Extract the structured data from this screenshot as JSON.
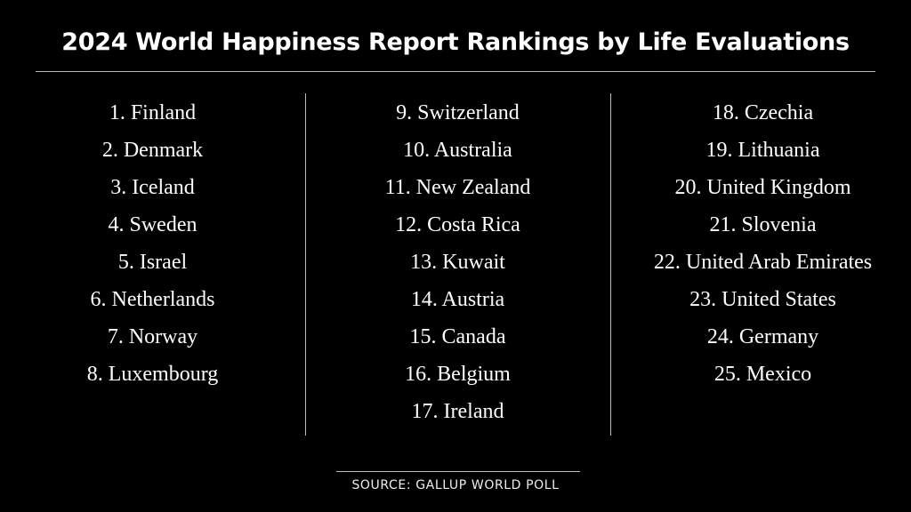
{
  "title": "2024 World Happiness Report Rankings by Life Evaluations",
  "columns": [
    [
      "1. Finland",
      "2. Denmark",
      "3. Iceland",
      "4. Sweden",
      "5. Israel",
      "6. Netherlands",
      "7. Norway",
      "8. Luxembourg"
    ],
    [
      "9. Switzerland",
      "10. Australia",
      "11. New Zealand",
      "12. Costa Rica",
      "13. Kuwait",
      "14. Austria",
      "15. Canada",
      "16. Belgium",
      "17. Ireland"
    ],
    [
      "18. Czechia",
      "19. Lithuania",
      "20. United Kingdom",
      "21. Slovenia",
      "22. United Arab Emirates",
      "23. United States",
      "24. Germany",
      "25. Mexico"
    ]
  ],
  "source": "SOURCE: GALLUP WORLD POLL"
}
